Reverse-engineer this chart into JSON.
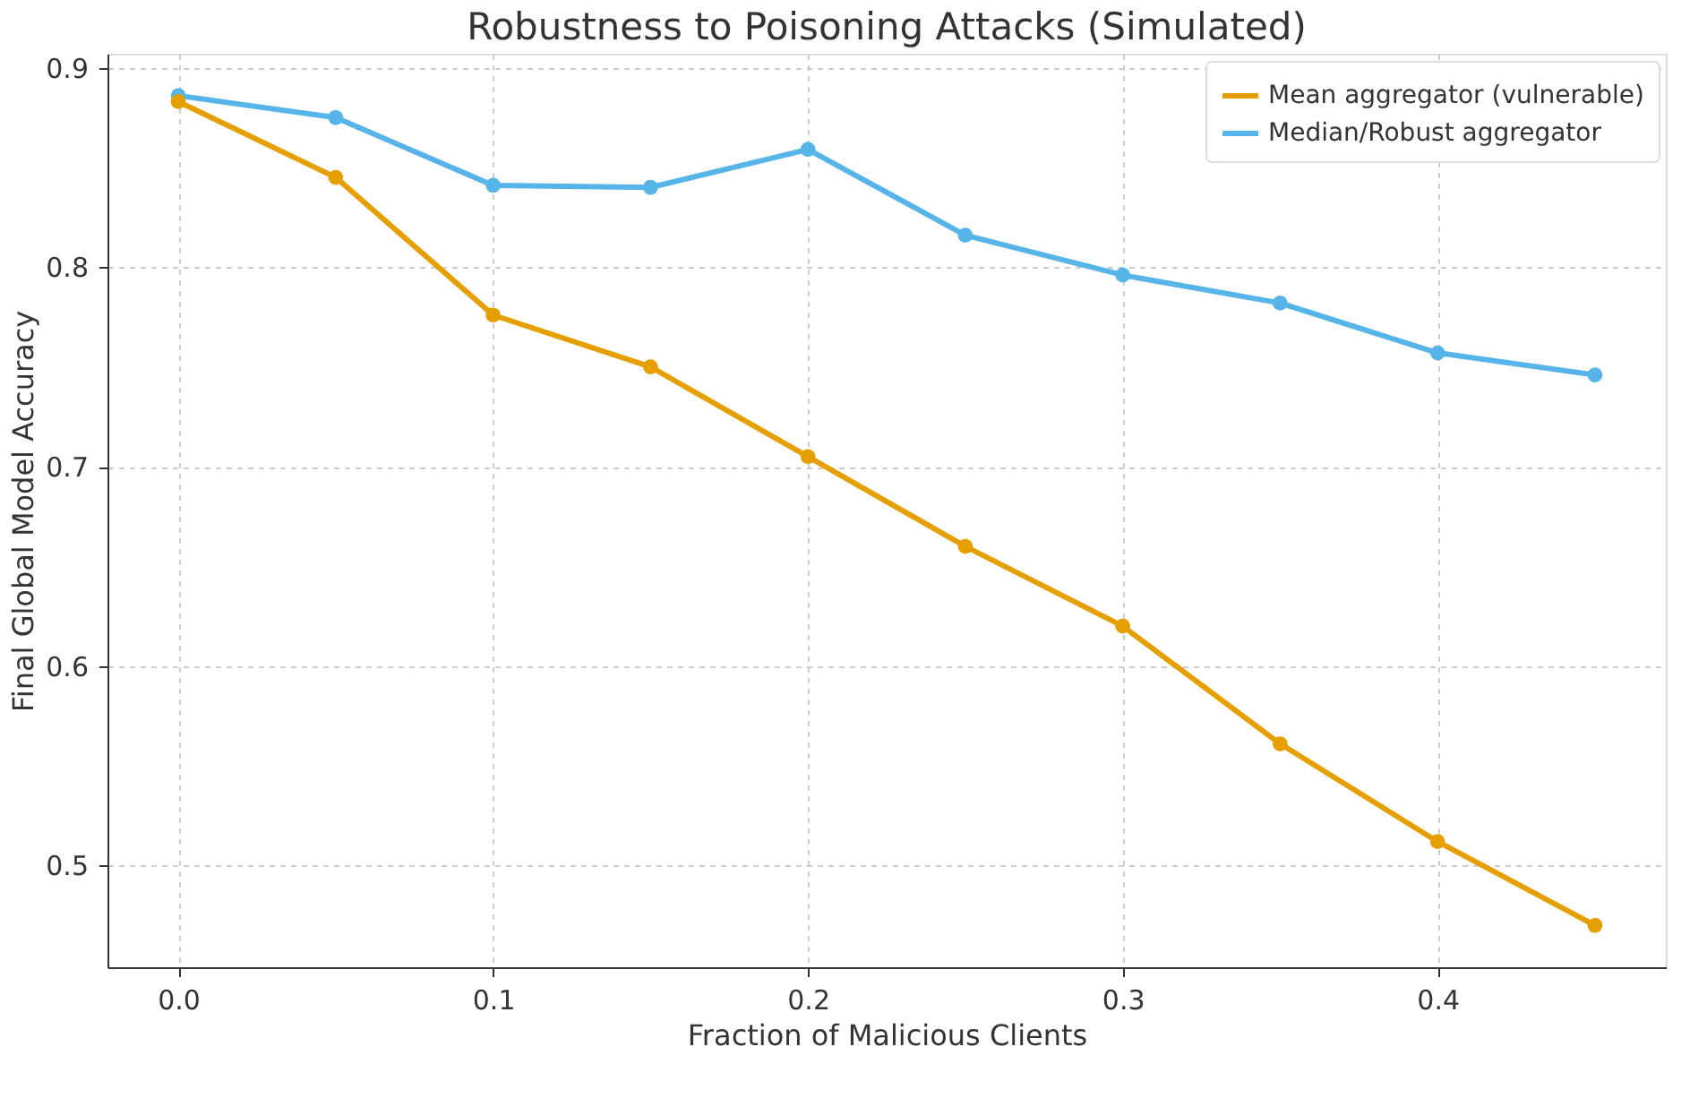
{
  "chart_data": {
    "type": "line",
    "title": "Robustness to Poisoning Attacks (Simulated)",
    "xlabel": "Fraction of Malicious Clients",
    "ylabel": "Final Global Model Accuracy",
    "x": [
      0.0,
      0.05,
      0.1,
      0.15,
      0.2,
      0.25,
      0.3,
      0.35,
      0.4,
      0.45
    ],
    "series": [
      {
        "name": "Mean aggregator (vulnerable)",
        "color": "#e69f00",
        "values": [
          0.883,
          0.845,
          0.776,
          0.75,
          0.705,
          0.66,
          0.62,
          0.561,
          0.512,
          0.47
        ]
      },
      {
        "name": "Median/Robust aggregator",
        "color": "#56b4e9",
        "values": [
          0.886,
          0.875,
          0.841,
          0.84,
          0.859,
          0.816,
          0.796,
          0.782,
          0.757,
          0.746
        ]
      }
    ],
    "xlim": [
      -0.0225,
      0.4725
    ],
    "ylim": [
      0.449,
      0.907
    ],
    "xticks": [
      {
        "value": 0,
        "label": "0.0"
      },
      0.1,
      0.2,
      0.3,
      0.4
    ],
    "yticks": [
      0.5,
      0.6,
      0.7,
      0.8,
      0.9
    ],
    "grid": true,
    "legend": "top right",
    "marker": "circle",
    "line_style": "solid"
  }
}
